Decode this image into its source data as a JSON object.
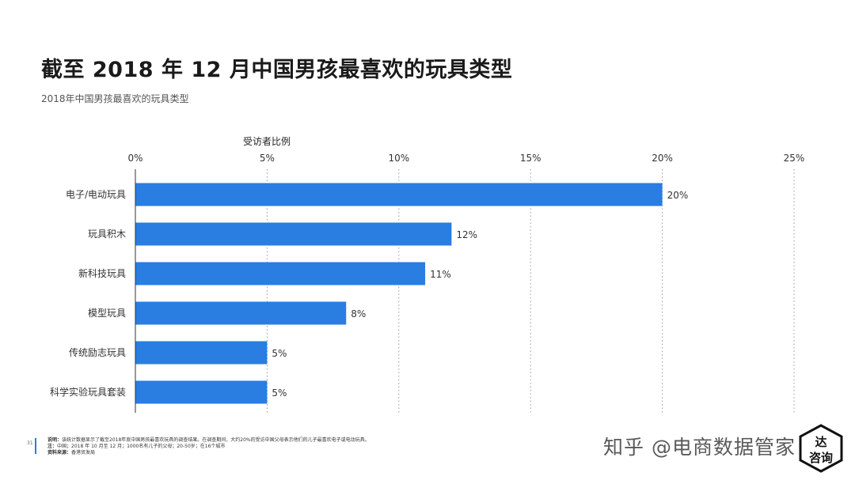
{
  "header": {
    "title": "截至 2018 年 12 月中国男孩最喜欢的玩具类型",
    "subtitle": "2018年中国男孩最喜欢的玩具类型"
  },
  "chart_data": {
    "type": "bar",
    "orientation": "horizontal",
    "xlabel": "受访者比例",
    "ylabel": "",
    "xlim": [
      0,
      25
    ],
    "ticks": [
      "0%",
      "5%",
      "10%",
      "15%",
      "20%",
      "25%"
    ],
    "grid": "vertical dotted",
    "color": "#2a7de1",
    "categories": [
      "电子/电动玩具",
      "玩具积木",
      "新科技玩具",
      "模型玩具",
      "传统励志玩具",
      "科学实验玩具套装"
    ],
    "values": [
      20,
      12,
      11,
      8,
      5,
      5
    ],
    "value_labels": [
      "20%",
      "12%",
      "11%",
      "8%",
      "5%",
      "5%"
    ]
  },
  "footer": {
    "page_number": "31",
    "line1_prefix": "说明：",
    "line1": "该统计数据显示了截至2018年底中国男孩最喜欢玩具的调查结果。在调查期间，大约20%的受访中国父母表示他们的儿子最喜欢电子或电动玩具。",
    "line2_prefix": "注：",
    "line2": "中国；2018 年 10 月至 12 月；1000名有儿子的父母；20-50岁；在16个城市",
    "line3_prefix": "资料来源：",
    "line3": "香港贸发局"
  },
  "watermark": "知乎 @电商数据管家",
  "logo": {
    "line1": "达",
    "line2": "咨询"
  }
}
